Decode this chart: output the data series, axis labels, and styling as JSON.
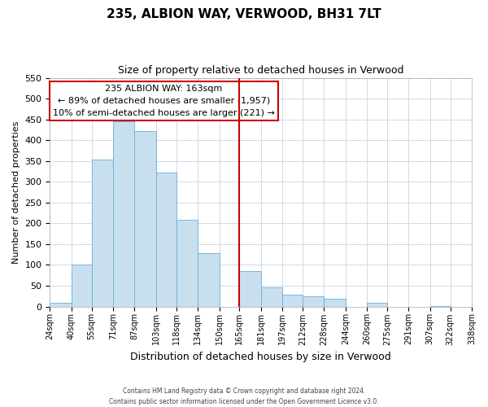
{
  "title": "235, ALBION WAY, VERWOOD, BH31 7LT",
  "subtitle": "Size of property relative to detached houses in Verwood",
  "xlabel": "Distribution of detached houses by size in Verwood",
  "ylabel": "Number of detached properties",
  "bar_color": "#c8dff0",
  "bar_edge_color": "#6aafd6",
  "background_color": "#ffffff",
  "grid_color": "#d0d8e8",
  "ref_line_x": 165,
  "ref_line_color": "#cc0000",
  "bin_edges": [
    24,
    40,
    55,
    71,
    87,
    103,
    118,
    134,
    150,
    165,
    181,
    197,
    212,
    228,
    244,
    260,
    275,
    291,
    307,
    322,
    338
  ],
  "bin_labels": [
    "24sqm",
    "40sqm",
    "55sqm",
    "71sqm",
    "87sqm",
    "103sqm",
    "118sqm",
    "134sqm",
    "150sqm",
    "165sqm",
    "181sqm",
    "197sqm",
    "212sqm",
    "228sqm",
    "244sqm",
    "260sqm",
    "275sqm",
    "291sqm",
    "307sqm",
    "322sqm",
    "338sqm"
  ],
  "counts": [
    8,
    101,
    354,
    445,
    422,
    323,
    209,
    129,
    0,
    85,
    47,
    28,
    24,
    19,
    0,
    8,
    0,
    0,
    2,
    0
  ],
  "ylim": [
    0,
    550
  ],
  "yticks": [
    0,
    50,
    100,
    150,
    200,
    250,
    300,
    350,
    400,
    450,
    500,
    550
  ],
  "annotation_title": "235 ALBION WAY: 163sqm",
  "annotation_line1": "← 89% of detached houses are smaller (1,957)",
  "annotation_line2": "10% of semi-detached houses are larger (221) →",
  "annotation_box_color": "#ffffff",
  "annotation_box_edge": "#cc0000",
  "footer_line1": "Contains HM Land Registry data © Crown copyright and database right 2024.",
  "footer_line2": "Contains public sector information licensed under the Open Government Licence v3.0."
}
